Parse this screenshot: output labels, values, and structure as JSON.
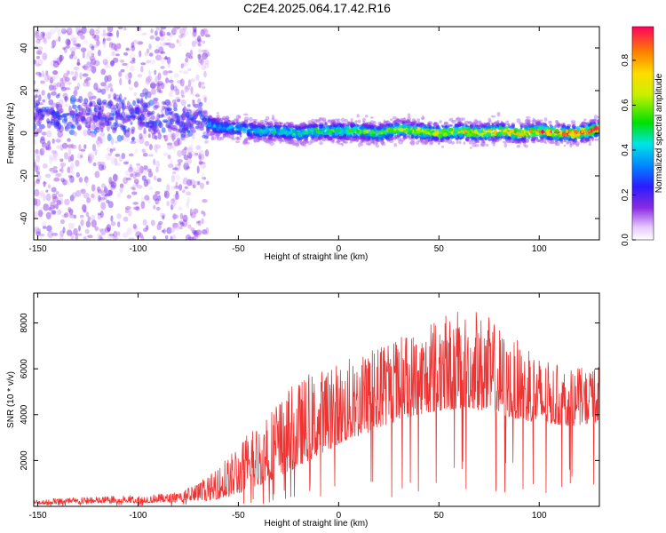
{
  "title": "C2E4.2025.064.17.42.R16",
  "chart_data": [
    {
      "type": "heatmap",
      "xlabel": "Height of straight line (km)",
      "ylabel": "Frequency (Hz)",
      "xlim": [
        -152,
        130
      ],
      "ylim": [
        -50,
        50
      ],
      "xticks": [
        -150,
        -100,
        -50,
        0,
        50,
        100
      ],
      "yticks": [
        -40,
        -20,
        0,
        20,
        40
      ],
      "colorbar": {
        "label": "Normalized spectral amplitude",
        "range": [
          0,
          0.95
        ],
        "ticks": [
          0.0,
          0.2,
          0.4,
          0.6,
          0.8
        ]
      },
      "grid": false,
      "regions": [
        {
          "x_range": [
            -152,
            -65
          ],
          "description_values": {
            "freq_spread_hz": [
              -50,
              50
            ],
            "band_center_hz": 8,
            "amplitude": [
              0.05,
              0.3
            ]
          }
        },
        {
          "x_range": [
            -65,
            130
          ],
          "description_values": {
            "band_center_hz": 1,
            "band_halfwidth_hz": 6,
            "amplitude": [
              0.1,
              0.95
            ]
          }
        }
      ],
      "ridge": {
        "x": [
          -150,
          -130,
          -110,
          -90,
          -70,
          -60,
          -50,
          -40,
          -30,
          -20,
          -10,
          0,
          10,
          20,
          30,
          40,
          50,
          60,
          70,
          80,
          90,
          100,
          110,
          120,
          130
        ],
        "y": [
          10,
          9,
          8,
          8,
          6,
          3,
          2,
          1,
          1,
          0,
          1,
          1,
          1,
          0,
          2,
          1,
          0,
          1,
          0,
          1,
          0,
          1,
          0,
          0,
          2
        ]
      }
    },
    {
      "type": "line",
      "xlabel": "Height of straight line (km)",
      "ylabel": "SNR (10 * v/v)",
      "xlim": [
        -152,
        130
      ],
      "ylim": [
        0,
        9300
      ],
      "xticks": [
        -150,
        -100,
        -50,
        0,
        50,
        100
      ],
      "yticks": [
        2000,
        4000,
        6000,
        8000
      ],
      "grid": false,
      "series": [
        {
          "color": "#ee3333",
          "envelope": {
            "x": [
              -152,
              -130,
              -100,
              -80,
              -65,
              -55,
              -45,
              -35,
              -25,
              -15,
              -5,
              5,
              15,
              25,
              35,
              45,
              55,
              65,
              75,
              85,
              95,
              105,
              115,
              125,
              130
            ],
            "base": [
              100,
              120,
              150,
              180,
              250,
              400,
              700,
              1100,
              1500,
              2000,
              2500,
              2900,
              3200,
              3600,
              3900,
              4100,
              4200,
              4300,
              4100,
              3900,
              3700,
              3600,
              3500,
              3600,
              3700
            ],
            "peak": [
              300,
              400,
              500,
              600,
              1300,
              2200,
              3200,
              4300,
              5200,
              5800,
              6200,
              6500,
              6900,
              7300,
              7700,
              8100,
              8400,
              8700,
              8300,
              7500,
              6900,
              6300,
              6000,
              6100,
              6200
            ]
          }
        }
      ]
    }
  ]
}
